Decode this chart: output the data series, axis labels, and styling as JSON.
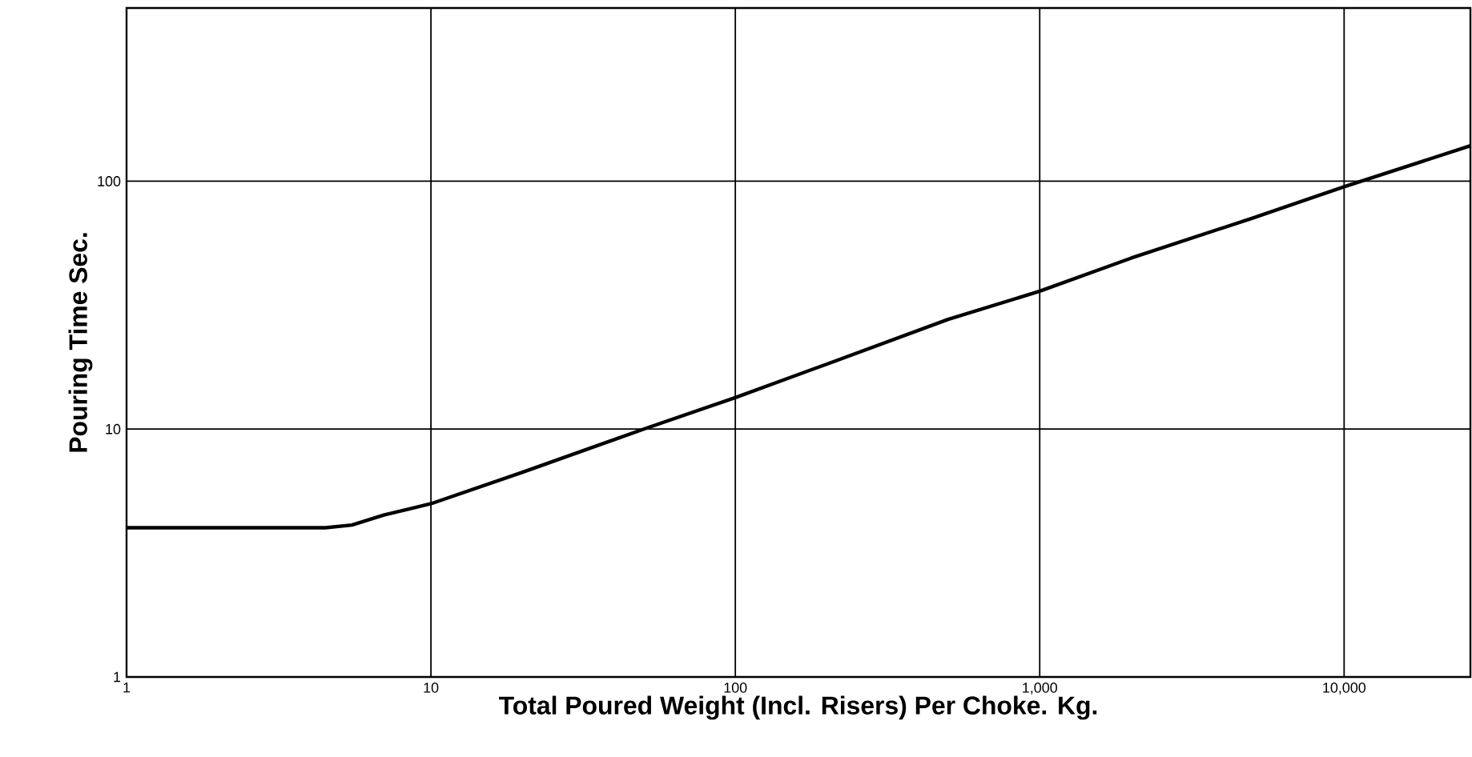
{
  "chart_data": {
    "type": "line",
    "xlabel": "Total Poured Weight (Incl. Risers)    Per Choke. Kg.",
    "ylabel": "Pouring Time Sec.",
    "log": "xy",
    "xlim": [
      1,
      26000
    ],
    "ylim": [
      1,
      500
    ],
    "xticks": [
      1,
      10,
      100,
      {
        "value": 1000,
        "label": "1,000"
      },
      {
        "value": 10000,
        "label": "10,000"
      }
    ],
    "yticks": [
      1,
      10,
      100
    ],
    "grid": true,
    "line_style": "solid",
    "series": [
      {
        "color": "#000000",
        "x": [
          1,
          3,
          4.5,
          5.5,
          7,
          10,
          20,
          50,
          100,
          200,
          500,
          1000,
          2000,
          5000,
          10000,
          26000
        ],
        "values": [
          4,
          4,
          4,
          4.1,
          4.5,
          5,
          6.7,
          10,
          13.4,
          18.3,
          27.7,
          36,
          49,
          71,
          95,
          139
        ]
      }
    ]
  }
}
